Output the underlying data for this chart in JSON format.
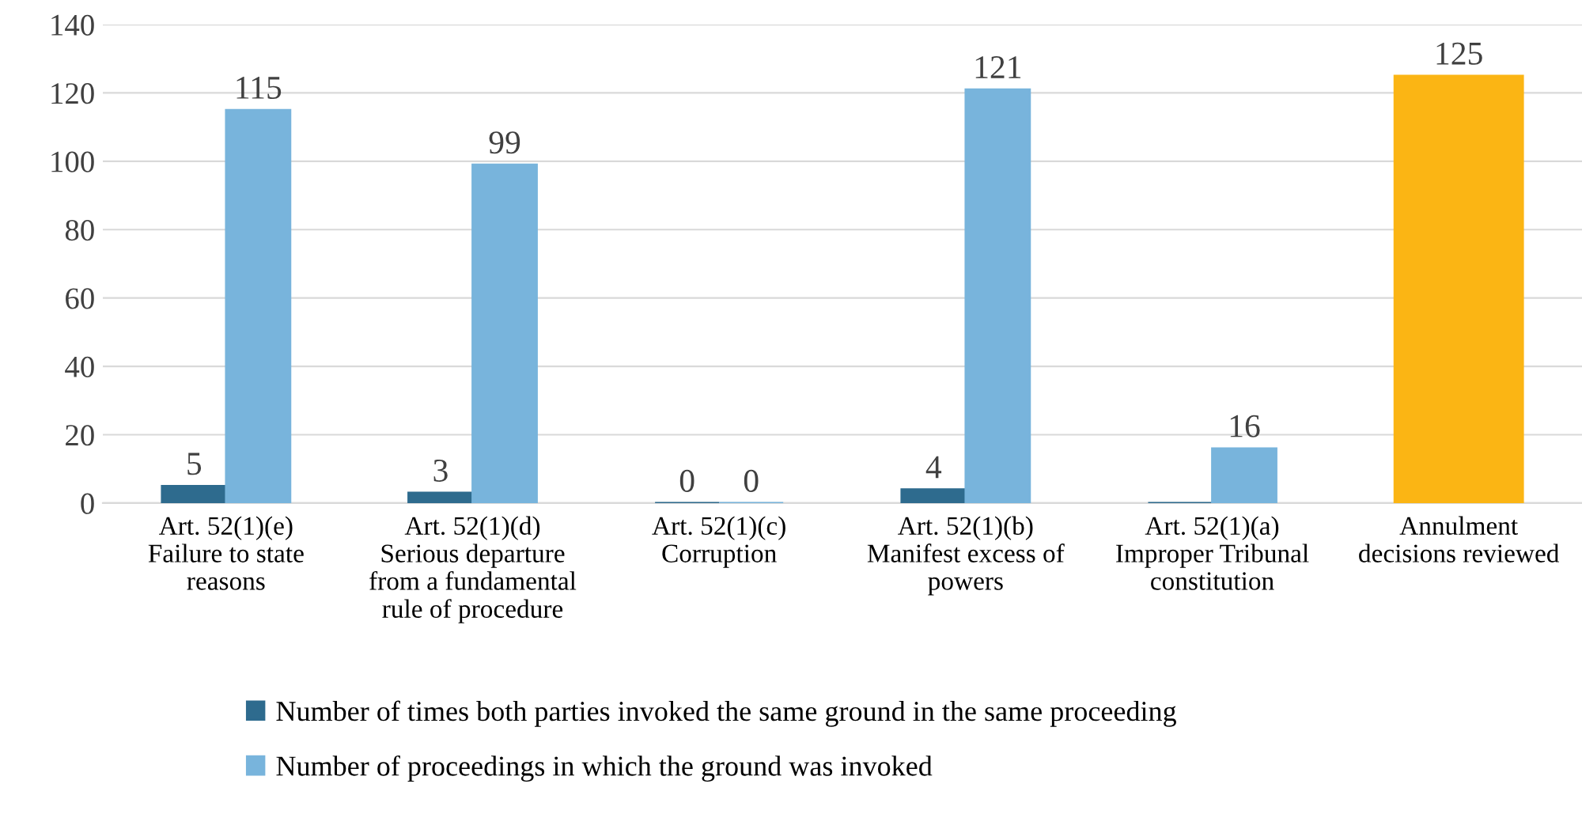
{
  "chart_data": {
    "type": "bar",
    "categories": [
      "Art. 52(1)(e)\nFailure to state\nreasons",
      "Art. 52(1)(d)\nSerious departure\nfrom a fundamental\nrule of procedure",
      "Art. 52(1)(c)\nCorruption",
      "Art. 52(1)(b)\nManifest excess of\npowers",
      "Art. 52(1)(a)\nImproper Tribunal\nconstitution",
      "Annulment\ndecisions reviewed"
    ],
    "series": [
      {
        "name": "Number of times both parties invoked the same ground in the same proceeding",
        "color": "#2e6b8e",
        "values": [
          5,
          3,
          0,
          4,
          0,
          null
        ],
        "value_labels": [
          "5",
          "3",
          "0",
          "4",
          null,
          null
        ]
      },
      {
        "name": "Number of proceedings in which the ground was invoked",
        "color": "#78b4dc",
        "values": [
          115,
          99,
          0,
          121,
          16,
          null
        ],
        "value_labels": [
          "115",
          "99",
          "0",
          "121",
          "16",
          null
        ]
      },
      {
        "color": "#fbb514",
        "values": [
          null,
          null,
          null,
          null,
          null,
          125
        ],
        "value_labels": [
          null,
          null,
          null,
          null,
          null,
          "125"
        ]
      }
    ],
    "ylim": [
      0,
      140
    ],
    "yticks": [
      0,
      20,
      40,
      60,
      80,
      100,
      120,
      140
    ],
    "grid": "y",
    "legend": "bottom"
  }
}
